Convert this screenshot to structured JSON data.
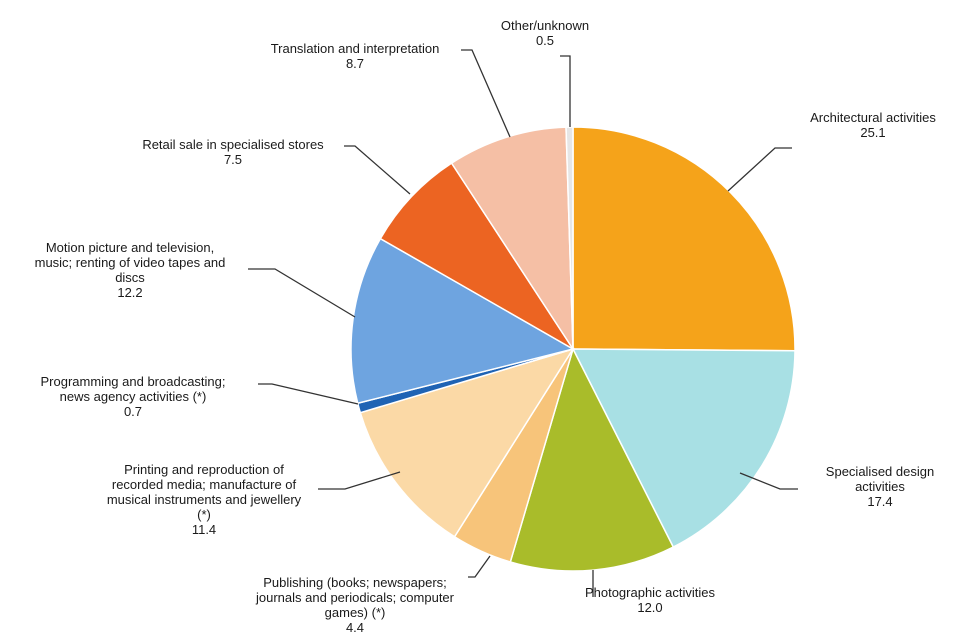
{
  "chart_data": {
    "type": "pie",
    "start_angle_deg": 0,
    "direction": "clockwise",
    "slices": [
      {
        "label": [
          "Architectural activities"
        ],
        "value": 25.1,
        "display": "25.1",
        "color": "#f5a31a"
      },
      {
        "label": [
          "Specialised design",
          "activities"
        ],
        "value": 17.4,
        "display": "17.4",
        "color": "#a8e0e4"
      },
      {
        "label": [
          "Photographic activities"
        ],
        "value": 12.0,
        "display": "12.0",
        "color": "#a9bc2a"
      },
      {
        "label": [
          "Publishing (books; newspapers;",
          "journals and periodicals; computer",
          "games) (*)"
        ],
        "value": 4.4,
        "display": "4.4",
        "color": "#f7c47a"
      },
      {
        "label": [
          "Printing and reproduction of",
          "recorded media; manufacture of",
          "musical instruments and jewellery",
          "(*)"
        ],
        "value": 11.4,
        "display": "11.4",
        "color": "#fbd9a6"
      },
      {
        "label": [
          "Programming and broadcasting;",
          "news agency activities (*)"
        ],
        "value": 0.7,
        "display": "0.7",
        "color": "#1f63b4"
      },
      {
        "label": [
          "Motion picture and television,",
          "music; renting of video tapes and",
          "discs"
        ],
        "value": 12.2,
        "display": "12.2",
        "color": "#6ea4e0"
      },
      {
        "label": [
          "Retail sale in specialised stores"
        ],
        "value": 7.5,
        "display": "7.5",
        "color": "#ec6422"
      },
      {
        "label": [
          "Translation and interpretation"
        ],
        "value": 8.7,
        "display": "8.7",
        "color": "#f5bfa5"
      },
      {
        "label": [
          "Other/unknown"
        ],
        "value": 0.5,
        "display": "0.5",
        "color": "#e6e6e6"
      }
    ]
  }
}
